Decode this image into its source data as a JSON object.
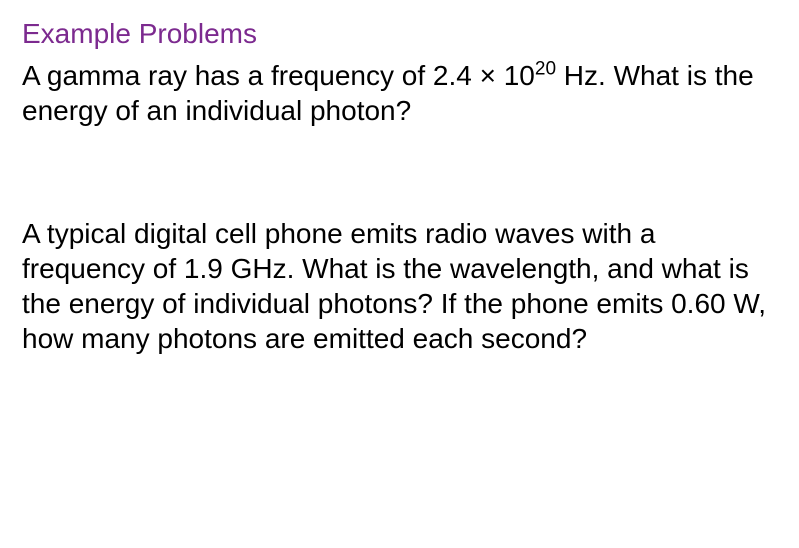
{
  "heading": {
    "text": "Example Problems",
    "color": "#7c2a8f",
    "fontsize": 28
  },
  "problems": [
    {
      "segments": [
        {
          "text": "A gamma ray has a frequency of 2.4 × 10"
        },
        {
          "text": "20",
          "sup": true
        },
        {
          "text": " Hz. What is the energy of an individual photon?"
        }
      ],
      "color": "#000000",
      "fontsize": 28
    },
    {
      "segments": [
        {
          "text": "A typical digital cell phone emits radio waves with a frequency of 1.9 GHz. What is the wavelength, and what is the energy of individual photons? If the phone emits 0.60 W, how many photons are emitted each second?"
        }
      ],
      "color": "#000000",
      "fontsize": 28
    }
  ],
  "background_color": "#ffffff"
}
